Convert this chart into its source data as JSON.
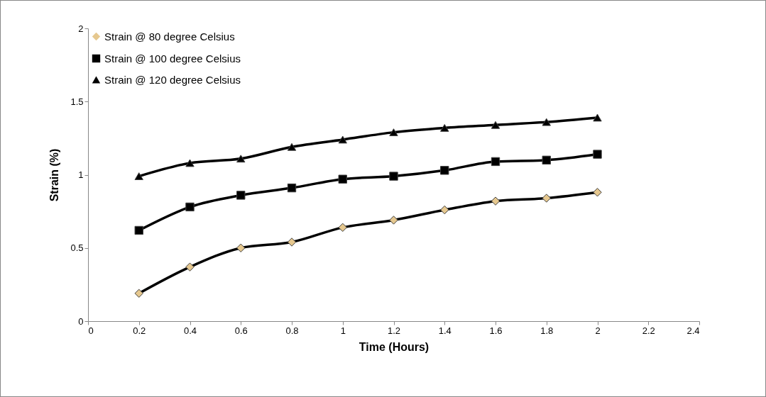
{
  "chart_data": {
    "type": "line",
    "xlabel": "Time (Hours)",
    "ylabel": "Strain (%)",
    "x": [
      0.2,
      0.4,
      0.6,
      0.8,
      1,
      1.2,
      1.4,
      1.6,
      1.8,
      2
    ],
    "series": [
      {
        "name": "Strain @ 80 degree Celsius",
        "color": "#e6c88f",
        "marker": "diamond",
        "values": [
          0.19,
          0.37,
          0.5,
          0.54,
          0.64,
          0.69,
          0.76,
          0.82,
          0.84,
          0.88
        ]
      },
      {
        "name": "Strain @ 100 degree Celsius",
        "color": "#000000",
        "marker": "square",
        "values": [
          0.62,
          0.78,
          0.86,
          0.91,
          0.97,
          0.99,
          1.03,
          1.09,
          1.1,
          1.14
        ]
      },
      {
        "name": "Strain @ 120 degree Celsius",
        "color": "#000000",
        "marker": "triangle",
        "values": [
          0.99,
          1.08,
          1.11,
          1.19,
          1.24,
          1.29,
          1.32,
          1.34,
          1.36,
          1.39
        ]
      }
    ],
    "xlim": [
      0,
      2.4
    ],
    "xticks": [
      0,
      0.2,
      0.4,
      0.6,
      0.8,
      1,
      1.2,
      1.4,
      1.6,
      1.8,
      2,
      2.2,
      2.4
    ],
    "ylim": [
      0,
      2
    ],
    "yticks": [
      0,
      0.5,
      1,
      1.5,
      2
    ],
    "grid": false,
    "legend": "top left",
    "line_style": "solid"
  }
}
